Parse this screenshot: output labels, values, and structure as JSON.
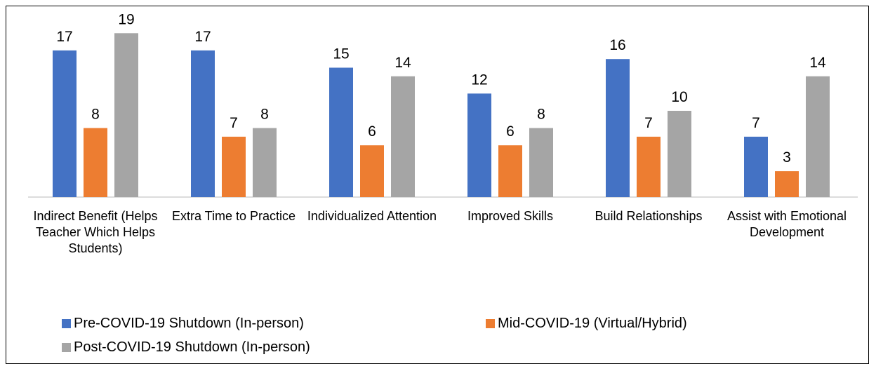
{
  "chart_data": {
    "type": "bar",
    "categories": [
      "Indirect Benefit (Helps Teacher Which Helps Students)",
      "Extra Time to Practice",
      "Individualized Attention",
      "Improved Skills",
      "Build Relationships",
      "Assist with Emotional Development"
    ],
    "series": [
      {
        "name": "Pre-COVID-19 Shutdown (In-person)",
        "color": "#4472c4",
        "values": [
          17,
          17,
          15,
          12,
          16,
          7
        ]
      },
      {
        "name": "Mid-COVID-19 (Virtual/Hybrid)",
        "color": "#ed7d31",
        "values": [
          8,
          7,
          6,
          6,
          7,
          3
        ]
      },
      {
        "name": "Post-COVID-19 Shutdown (In-person)",
        "color": "#a5a5a5",
        "values": [
          19,
          8,
          14,
          8,
          10,
          14
        ]
      }
    ],
    "legend": "bottom"
  }
}
